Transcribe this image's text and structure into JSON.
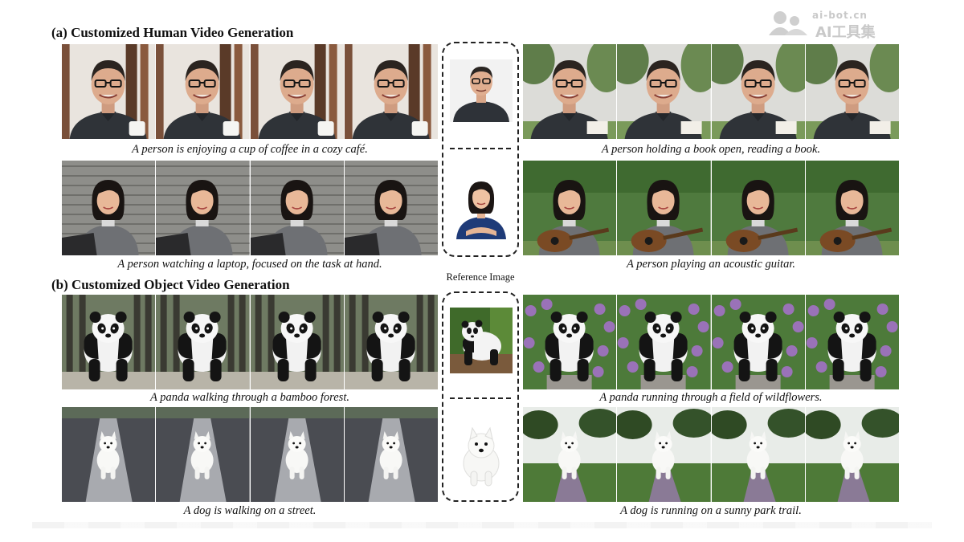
{
  "watermark": {
    "url": "ai-bot.cn",
    "name": "AI工具集",
    "logo_icon": "ai-bot-logo-icon"
  },
  "sections": [
    {
      "label": "(a) Customized Human Video Generation",
      "rows": [
        {
          "left_caption": "A person is enjoying a cup of coffee in a cozy café.",
          "right_caption": "A person holding a book open, reading a book.",
          "left_scene": "cafe-interior",
          "right_scene": "garden-outdoor",
          "subject": "man-with-glasses"
        },
        {
          "left_caption": "A person watching a laptop, focused on the task at hand.",
          "right_caption": "A person playing an acoustic guitar.",
          "left_scene": "stone-wall",
          "right_scene": "hedge-garden",
          "subject": "woman"
        }
      ]
    },
    {
      "label": "(b) Customized Object Video Generation",
      "rows": [
        {
          "left_caption": "A panda walking through a bamboo forest.",
          "right_caption": "A panda running through a field of wildflowers.",
          "left_scene": "bamboo-forest",
          "right_scene": "wildflower-field",
          "subject": "panda"
        },
        {
          "left_caption": "A dog is walking on a street.",
          "right_caption": "A dog is running on a sunny park trail.",
          "left_scene": "snowy-street",
          "right_scene": "park-trail",
          "subject": "white-dog"
        }
      ]
    }
  ],
  "reference": {
    "label": "Reference Image",
    "images": [
      "man-portrait",
      "woman-portrait",
      "panda-portrait",
      "dog-portrait"
    ]
  }
}
